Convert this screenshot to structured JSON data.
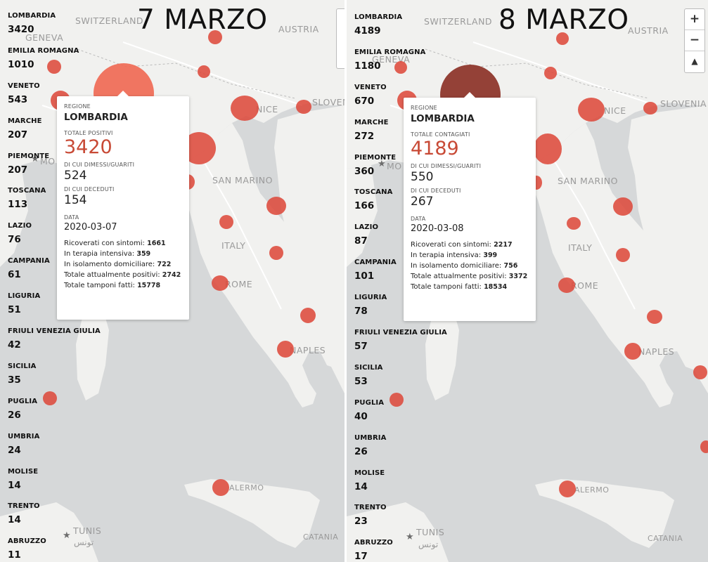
{
  "map_labels": {
    "switzerland": "SWITZERLAND",
    "austria": "AUSTRIA",
    "geneva": "GENEVA",
    "slovenia": "SLOVENIA",
    "nice": "NICE",
    "monaco": "MO",
    "san_marino": "SAN MARINO",
    "italy": "ITALY",
    "rome": "ROME",
    "naples": "NAPLES",
    "palermo": "ALERMO",
    "tunis": "TUNIS",
    "tunis_ar": "تونس",
    "catania": "CATANIA"
  },
  "left": {
    "title": "7 MARZO",
    "regions": [
      {
        "name": "LOMBARDIA",
        "value": "3420"
      },
      {
        "name": "EMILIA ROMAGNA",
        "value": "1010"
      },
      {
        "name": "VENETO",
        "value": "543"
      },
      {
        "name": "MARCHE",
        "value": "207"
      },
      {
        "name": "PIEMONTE",
        "value": "207"
      },
      {
        "name": "TOSCANA",
        "value": "113"
      },
      {
        "name": "LAZIO",
        "value": "76"
      },
      {
        "name": "CAMPANIA",
        "value": "61"
      },
      {
        "name": "LIGURIA",
        "value": "51"
      },
      {
        "name": "FRIULI VENEZIA GIULIA",
        "value": "42"
      },
      {
        "name": "SICILIA",
        "value": "35"
      },
      {
        "name": "PUGLIA",
        "value": "26"
      },
      {
        "name": "UMBRIA",
        "value": "24"
      },
      {
        "name": "MOLISE",
        "value": "14"
      },
      {
        "name": "TRENTO",
        "value": "14"
      },
      {
        "name": "ABRUZZO",
        "value": "11"
      }
    ],
    "popup": {
      "region_label": "REGIONE",
      "region": "LOMBARDIA",
      "total_label": "TOTALE POSITIVI",
      "total": "3420",
      "recovered_label": "DI CUI DIMESSI/GUARITI",
      "recovered": "524",
      "deaths_label": "DI CUI DECEDUTI",
      "deaths": "154",
      "date_label": "DATA",
      "date": "2020-03-07",
      "stats": [
        {
          "label": "Ricoverati con sintomi: ",
          "value": "1661"
        },
        {
          "label": "In terapia intensiva: ",
          "value": "359"
        },
        {
          "label": "In isolamento domiciliare: ",
          "value": "722"
        },
        {
          "label": "Totale attualmente positivi: ",
          "value": "2742"
        },
        {
          "label": "Totale tamponi fatti: ",
          "value": "15778"
        }
      ]
    }
  },
  "right": {
    "title": "8 MARZO",
    "regions": [
      {
        "name": "LOMBARDIA",
        "value": "4189"
      },
      {
        "name": "EMILIA ROMAGNA",
        "value": "1180"
      },
      {
        "name": "VENETO",
        "value": "670"
      },
      {
        "name": "MARCHE",
        "value": "272"
      },
      {
        "name": "PIEMONTE",
        "value": "360"
      },
      {
        "name": "TOSCANA",
        "value": "166"
      },
      {
        "name": "LAZIO",
        "value": "87"
      },
      {
        "name": "CAMPANIA",
        "value": "101"
      },
      {
        "name": "LIGURIA",
        "value": "78"
      },
      {
        "name": "FRIULI VENEZIA GIULIA",
        "value": "57"
      },
      {
        "name": "SICILIA",
        "value": "53"
      },
      {
        "name": "PUGLIA",
        "value": "40"
      },
      {
        "name": "UMBRIA",
        "value": "26"
      },
      {
        "name": "MOLISE",
        "value": "14"
      },
      {
        "name": "TRENTO",
        "value": "23"
      },
      {
        "name": "ABRUZZO",
        "value": "17"
      }
    ],
    "popup": {
      "region_label": "REGIONE",
      "region": "LOMBARDIA",
      "total_label": "TOTALE CONTAGIATI",
      "total": "4189",
      "recovered_label": "DI CUI DIMESSI/GUARITI",
      "recovered": "550",
      "deaths_label": "DI CUI DECEDUTI",
      "deaths": "267",
      "date_label": "DATA",
      "date": "2020-03-08",
      "stats": [
        {
          "label": "Ricoverati con sintomi: ",
          "value": "2217"
        },
        {
          "label": "In terapia intensiva: ",
          "value": "399"
        },
        {
          "label": "In isolamento domiciliare: ",
          "value": "756"
        },
        {
          "label": "Totale attualmente positivi: ",
          "value": "3372"
        },
        {
          "label": "Totale tamponi fatti: ",
          "value": "18534"
        }
      ]
    }
  },
  "zoom": {
    "zoom_in": "+",
    "zoom_out": "−",
    "reset_north": "▲"
  },
  "colors": {
    "bubble": "#dd4a3c",
    "highlight_left": "#f06a55",
    "highlight_right": "#8a2d22",
    "land": "#f1f1ef",
    "sea": "#d6d8d9",
    "total_value": "#c84a36"
  }
}
